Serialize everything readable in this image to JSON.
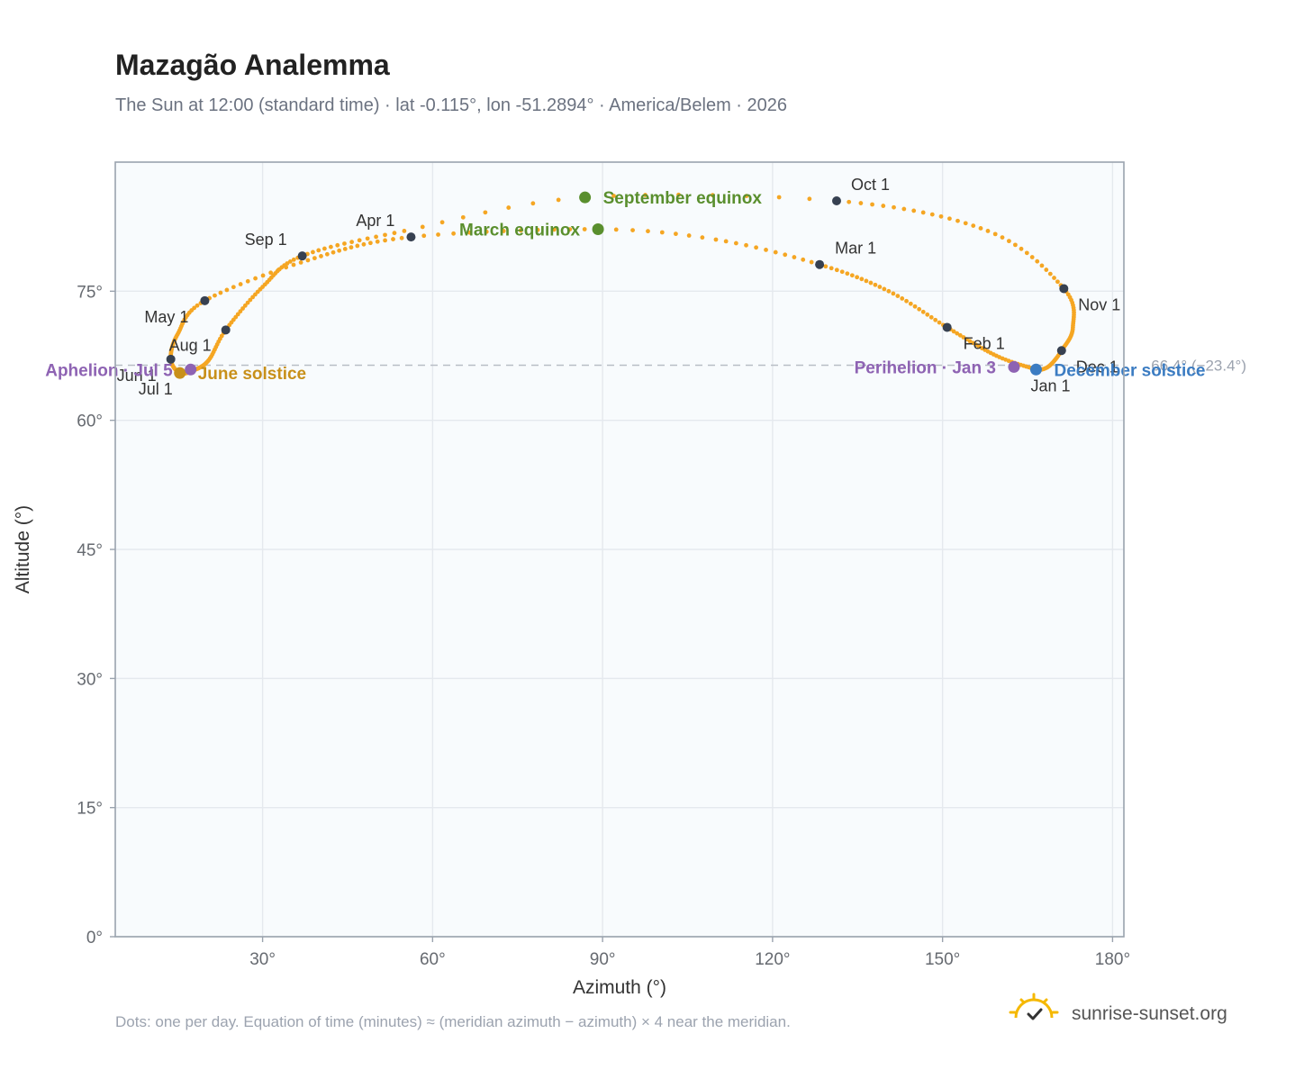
{
  "header": {
    "title": "Mazagão Analemma",
    "subtitle": "The Sun at 12:00 (standard time) · lat -0.115°, lon -51.2894° · America/Belem · 2026"
  },
  "footer": {
    "note": "Dots: one per day. Equation of time (minutes) ≈ (meridian azimuth − azimuth) × 4 near the meridian.",
    "brand": "sunrise-sunset.org",
    "brand_icon": "sun-check-icon"
  },
  "colors": {
    "curve": "#f5a623",
    "month_marker": "#374151",
    "equinox": "#5a8f2e",
    "june_solstice": "#c8901a",
    "december_solstice": "#3b7cc2",
    "apsis": "#8e63b3",
    "plot_background": "#f8fbfd",
    "frame": "#9aa3ae",
    "grid": "#e5e9ee",
    "reference_line": "#b8bec6"
  },
  "chart_data": {
    "type": "scatter",
    "title": "Mazagão Analemma",
    "xlabel": "Azimuth (°)",
    "ylabel": "Altitude (°)",
    "xlim": [
      4,
      182
    ],
    "ylim": [
      0,
      90
    ],
    "xticks": [
      30,
      60,
      90,
      120,
      150,
      180
    ],
    "yticks": [
      0,
      15,
      30,
      45,
      60,
      75
    ],
    "xtick_labels": [
      "30°",
      "60°",
      "90°",
      "120°",
      "150°",
      "180°"
    ],
    "ytick_labels": [
      "0°",
      "15°",
      "30°",
      "45°",
      "60°",
      "75°"
    ],
    "grid": true,
    "legend": "none",
    "daily_path_keypoints": [
      {
        "day": 0,
        "az": 166.5,
        "alt": 65.9
      },
      {
        "day": 15,
        "az": 159.5,
        "alt": 67.5
      },
      {
        "day": 31,
        "az": 150.8,
        "alt": 70.8
      },
      {
        "day": 45,
        "az": 140.5,
        "alt": 75.0
      },
      {
        "day": 59,
        "az": 128.3,
        "alt": 78.1
      },
      {
        "day": 70,
        "az": 110.0,
        "alt": 81.0
      },
      {
        "day": 78,
        "az": 89.2,
        "alt": 82.2
      },
      {
        "day": 90,
        "az": 56.2,
        "alt": 81.3
      },
      {
        "day": 105,
        "az": 38.0,
        "alt": 78.6
      },
      {
        "day": 120,
        "az": 19.8,
        "alt": 73.9
      },
      {
        "day": 135,
        "az": 15.0,
        "alt": 70.0
      },
      {
        "day": 151,
        "az": 13.8,
        "alt": 67.1
      },
      {
        "day": 171,
        "az": 15.4,
        "alt": 65.5
      },
      {
        "day": 185,
        "az": 17.8,
        "alt": 65.8
      },
      {
        "day": 200,
        "az": 20.5,
        "alt": 67.0
      },
      {
        "day": 212,
        "az": 23.5,
        "alt": 70.5
      },
      {
        "day": 228,
        "az": 30.0,
        "alt": 75.5
      },
      {
        "day": 243,
        "az": 37.0,
        "alt": 79.1
      },
      {
        "day": 257,
        "az": 55.0,
        "alt": 82.0
      },
      {
        "day": 265,
        "az": 86.9,
        "alt": 85.9
      },
      {
        "day": 273,
        "az": 131.3,
        "alt": 85.5
      },
      {
        "day": 289,
        "az": 158.0,
        "alt": 82.0
      },
      {
        "day": 304,
        "az": 171.4,
        "alt": 75.3
      },
      {
        "day": 320,
        "az": 173.0,
        "alt": 70.8
      },
      {
        "day": 334,
        "az": 171.0,
        "alt": 68.1
      },
      {
        "day": 345,
        "az": 168.8,
        "alt": 66.3
      },
      {
        "day": 354,
        "az": 166.8,
        "alt": 65.8
      },
      {
        "day": 365,
        "az": 166.5,
        "alt": 65.9
      }
    ],
    "month_markers": [
      {
        "label": "Jan 1",
        "az": 166.5,
        "alt": 65.9,
        "anchor": "start",
        "dx": -6,
        "dy": 24
      },
      {
        "label": "Feb 1",
        "az": 150.8,
        "alt": 70.8,
        "anchor": "start",
        "dx": 18,
        "dy": 24
      },
      {
        "label": "Mar 1",
        "az": 128.3,
        "alt": 78.1,
        "anchor": "start",
        "dx": 17,
        "dy": -12
      },
      {
        "label": "Apr 1",
        "az": 56.2,
        "alt": 81.3,
        "anchor": "end",
        "dx": -18,
        "dy": -12
      },
      {
        "label": "May 1",
        "az": 19.8,
        "alt": 73.9,
        "anchor": "end",
        "dx": -18,
        "dy": 24
      },
      {
        "label": "Jun 1",
        "az": 13.8,
        "alt": 67.1,
        "anchor": "end",
        "dx": -16,
        "dy": 24
      },
      {
        "label": "Jul 1",
        "az": 15.4,
        "alt": 65.5,
        "anchor": "end",
        "dx": -8,
        "dy": 24
      },
      {
        "label": "Aug 1",
        "az": 23.5,
        "alt": 70.5,
        "anchor": "end",
        "dx": -16,
        "dy": 23
      },
      {
        "label": "Sep 1",
        "az": 37.0,
        "alt": 79.1,
        "anchor": "end",
        "dx": -17,
        "dy": -12
      },
      {
        "label": "Oct 1",
        "az": 131.3,
        "alt": 85.5,
        "anchor": "start",
        "dx": 16,
        "dy": -12
      },
      {
        "label": "Nov 1",
        "az": 171.4,
        "alt": 75.3,
        "anchor": "start",
        "dx": 16,
        "dy": 24
      },
      {
        "label": "Dec 1",
        "az": 171.0,
        "alt": 68.1,
        "anchor": "start",
        "dx": 16,
        "dy": 24
      }
    ],
    "events": [
      {
        "label": "March equinox",
        "az": 89.2,
        "alt": 82.2,
        "color": "#5a8f2e",
        "anchor": "end",
        "dx": -20,
        "dy": 7
      },
      {
        "label": "June solstice",
        "az": 15.4,
        "alt": 65.5,
        "color": "#c8901a",
        "anchor": "start",
        "dx": 20,
        "dy": 7
      },
      {
        "label": "September equinox",
        "az": 86.9,
        "alt": 85.9,
        "color": "#5a8f2e",
        "anchor": "start",
        "dx": 20,
        "dy": 7
      },
      {
        "label": "December solstice",
        "az": 166.5,
        "alt": 65.9,
        "color": "#3b7cc2",
        "anchor": "start",
        "dx": 20,
        "dy": 7
      },
      {
        "label": "Perihelion · Jan 3",
        "az": 162.6,
        "alt": 66.2,
        "color": "#8e63b3",
        "anchor": "end",
        "dx": -20,
        "dy": 7
      },
      {
        "label": "Aphelion · Jul 5",
        "az": 17.3,
        "alt": 65.9,
        "color": "#8e63b3",
        "anchor": "end",
        "dx": -20,
        "dy": 7
      }
    ],
    "reference_line": {
      "alt": 66.4,
      "label": "66.4° (−23.4°)"
    }
  }
}
